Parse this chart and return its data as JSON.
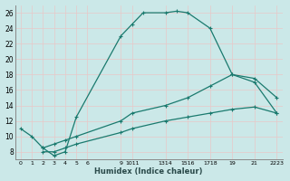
{
  "xlabel": "Humidex (Indice chaleur)",
  "bg_color": "#cbe8e8",
  "line_color": "#1a7a6e",
  "grid_color": "#ddf0f0",
  "ylim": [
    7,
    27
  ],
  "xlim": [
    -0.5,
    23.5
  ],
  "yticks": [
    8,
    10,
    12,
    14,
    16,
    18,
    20,
    22,
    24,
    26
  ],
  "xtick_positions": [
    0,
    1,
    2,
    3,
    4,
    5,
    6,
    9,
    10,
    13,
    15,
    17,
    19,
    21,
    23
  ],
  "xtick_labels": [
    "0",
    "1",
    "2",
    "3",
    "4",
    "5",
    "6",
    "9",
    "1011",
    "1314",
    "1516",
    "1718",
    "19",
    "21",
    "2223"
  ],
  "line1_x": [
    0,
    1,
    2,
    3,
    4,
    5,
    9,
    10,
    11,
    13,
    14,
    15,
    17,
    19,
    21,
    23
  ],
  "line1_y": [
    11,
    10,
    8.5,
    7.5,
    8,
    12.5,
    23,
    24.5,
    26,
    26,
    26.2,
    26,
    24,
    18,
    17,
    13
  ],
  "line2_x": [
    2,
    3,
    4,
    5,
    9,
    10,
    13,
    15,
    17,
    19,
    21,
    23
  ],
  "line2_y": [
    8.5,
    9,
    9.5,
    10,
    12,
    13,
    14,
    15,
    16.5,
    18,
    17.5,
    15
  ],
  "line3_x": [
    2,
    3,
    4,
    5,
    9,
    10,
    13,
    15,
    17,
    19,
    21,
    23
  ],
  "line3_y": [
    8,
    8,
    8.5,
    9,
    10.5,
    11,
    12,
    12.5,
    13,
    13.5,
    13.8,
    13
  ]
}
